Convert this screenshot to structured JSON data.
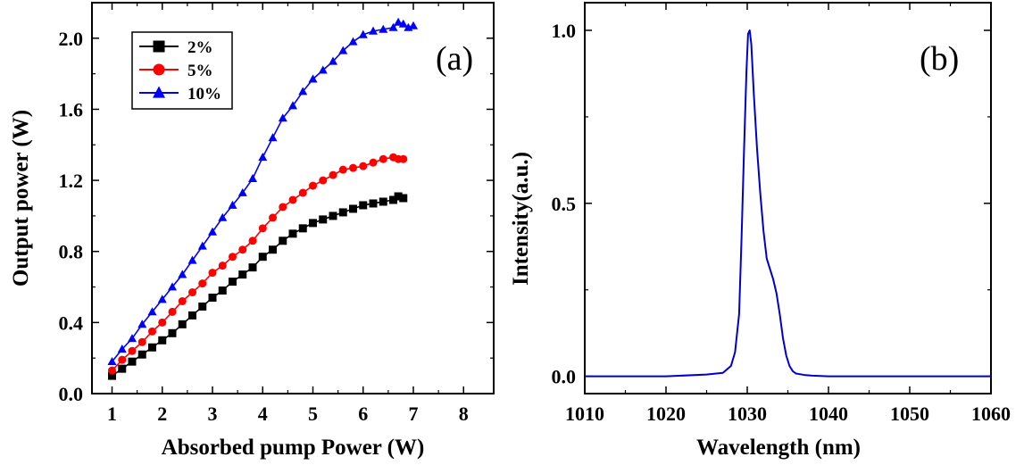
{
  "chart_data": [
    {
      "type": "line",
      "panel_label": "(a)",
      "xlabel": "Absorbed pump Power (W)",
      "ylabel": "Output power (W)",
      "xlim": [
        0.6,
        8.6
      ],
      "ylim": [
        0.0,
        2.2
      ],
      "xticks": [
        1,
        2,
        3,
        4,
        5,
        6,
        7,
        8
      ],
      "yticks": [
        0.0,
        0.4,
        0.8,
        1.2,
        1.6,
        2.0
      ],
      "ytick_labels": [
        "0.0",
        "0.4",
        "0.8",
        "1.2",
        "1.6",
        "2.0"
      ],
      "legend_position": "top-left",
      "series": [
        {
          "name": "2%",
          "color": "#000000",
          "marker": "square",
          "x": [
            1.0,
            1.2,
            1.4,
            1.6,
            1.8,
            2.0,
            2.2,
            2.4,
            2.6,
            2.8,
            3.0,
            3.2,
            3.4,
            3.6,
            3.8,
            4.0,
            4.2,
            4.4,
            4.6,
            4.8,
            5.0,
            5.2,
            5.4,
            5.6,
            5.8,
            6.0,
            6.2,
            6.4,
            6.6,
            6.7,
            6.8
          ],
          "y": [
            0.1,
            0.14,
            0.18,
            0.22,
            0.26,
            0.3,
            0.34,
            0.39,
            0.44,
            0.49,
            0.54,
            0.58,
            0.63,
            0.67,
            0.71,
            0.77,
            0.81,
            0.86,
            0.9,
            0.93,
            0.96,
            0.98,
            1.0,
            1.02,
            1.04,
            1.06,
            1.07,
            1.08,
            1.09,
            1.11,
            1.1
          ]
        },
        {
          "name": "5%",
          "color": "#ff0000",
          "marker": "circle",
          "x": [
            1.0,
            1.2,
            1.4,
            1.6,
            1.8,
            2.0,
            2.2,
            2.4,
            2.6,
            2.8,
            3.0,
            3.2,
            3.4,
            3.6,
            3.8,
            4.0,
            4.2,
            4.4,
            4.6,
            4.8,
            5.0,
            5.2,
            5.4,
            5.6,
            5.8,
            6.0,
            6.2,
            6.4,
            6.6,
            6.7,
            6.8
          ],
          "y": [
            0.13,
            0.19,
            0.24,
            0.29,
            0.35,
            0.4,
            0.46,
            0.52,
            0.57,
            0.62,
            0.68,
            0.72,
            0.77,
            0.81,
            0.86,
            0.93,
            0.99,
            1.05,
            1.09,
            1.13,
            1.17,
            1.2,
            1.23,
            1.26,
            1.27,
            1.28,
            1.3,
            1.32,
            1.33,
            1.32,
            1.32
          ]
        },
        {
          "name": "10%",
          "color": "#0000ff",
          "marker": "triangle",
          "x": [
            1.0,
            1.2,
            1.4,
            1.6,
            1.8,
            2.0,
            2.2,
            2.4,
            2.6,
            2.8,
            3.0,
            3.2,
            3.4,
            3.6,
            3.8,
            4.0,
            4.2,
            4.4,
            4.6,
            4.8,
            5.0,
            5.2,
            5.4,
            5.6,
            5.8,
            6.0,
            6.2,
            6.4,
            6.6,
            6.7,
            6.8,
            6.9,
            7.0
          ],
          "y": [
            0.18,
            0.25,
            0.31,
            0.39,
            0.46,
            0.53,
            0.6,
            0.67,
            0.75,
            0.83,
            0.91,
            0.99,
            1.06,
            1.13,
            1.21,
            1.33,
            1.44,
            1.55,
            1.62,
            1.7,
            1.77,
            1.82,
            1.87,
            1.93,
            1.98,
            2.02,
            2.04,
            2.05,
            2.06,
            2.09,
            2.08,
            2.06,
            2.07
          ]
        }
      ]
    },
    {
      "type": "line",
      "panel_label": "(b)",
      "xlabel": "Wavelength (nm)",
      "ylabel": "Intensity(a.u.)",
      "xlim": [
        1010,
        1060
      ],
      "ylim": [
        -0.05,
        1.08
      ],
      "xticks": [
        1010,
        1020,
        1030,
        1040,
        1050,
        1060
      ],
      "yticks": [
        0.0,
        0.5,
        1.0
      ],
      "ytick_labels": [
        "0.0",
        "0.5",
        "1.0"
      ],
      "series": [
        {
          "color": "#0000cc",
          "x": [
            1010,
            1015,
            1020,
            1025,
            1027,
            1028,
            1028.5,
            1029,
            1029.3,
            1029.6,
            1029.9,
            1030.1,
            1030.3,
            1030.5,
            1030.8,
            1031.2,
            1031.6,
            1032.0,
            1032.4,
            1032.8,
            1033.2,
            1033.6,
            1034.0,
            1034.4,
            1034.8,
            1035.2,
            1035.6,
            1036,
            1037,
            1038,
            1040,
            1045,
            1050,
            1055,
            1060
          ],
          "y": [
            0.0,
            0.0,
            0.0,
            0.005,
            0.01,
            0.03,
            0.07,
            0.18,
            0.4,
            0.65,
            0.88,
            0.99,
            1.0,
            0.96,
            0.82,
            0.66,
            0.53,
            0.42,
            0.34,
            0.31,
            0.28,
            0.24,
            0.18,
            0.11,
            0.06,
            0.03,
            0.015,
            0.008,
            0.004,
            0.002,
            0.0,
            0.0,
            0.0,
            0.0,
            0.0
          ]
        }
      ]
    }
  ]
}
